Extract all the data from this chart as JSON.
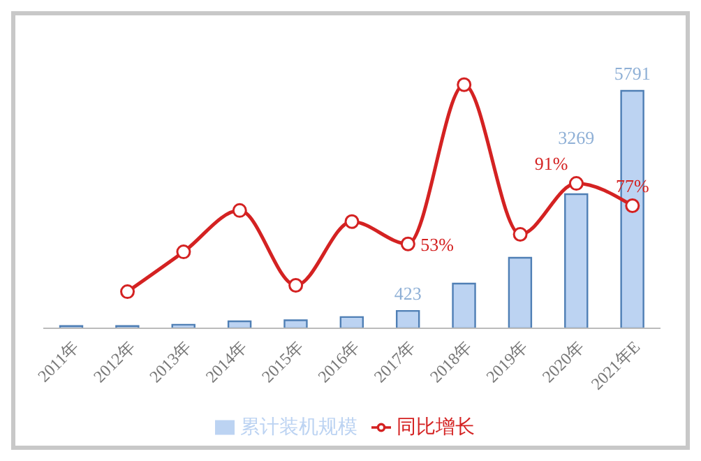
{
  "chart_data": {
    "type": "bar",
    "categories": [
      "2011年",
      "2012年",
      "2013年",
      "2014年",
      "2015年",
      "2016年",
      "2017年",
      "2018年",
      "2019年",
      "2020年",
      "2021年E"
    ],
    "series": [
      {
        "name": "累计装机规模",
        "color": "#bcd3f2",
        "values": [
          55,
          55,
          87,
          170,
          195,
          275,
          423,
          1090,
          1720,
          3269,
          5791
        ],
        "value_labels": [
          null,
          null,
          null,
          null,
          null,
          null,
          "423",
          null,
          null,
          "3269",
          "5791"
        ]
      },
      {
        "name": "同比增长",
        "type": "line",
        "axis": "y2",
        "color": "#d42222",
        "values": [
          null,
          23,
          48,
          74,
          27,
          67,
          53,
          153,
          59,
          91,
          77
        ],
        "value_labels": [
          null,
          null,
          null,
          null,
          null,
          null,
          "53%",
          null,
          null,
          "91%",
          "77%"
        ]
      }
    ],
    "tick_labels": "x",
    "legend": "bottom",
    "grid": false,
    "marker": "circle",
    "line_style": "solid"
  }
}
